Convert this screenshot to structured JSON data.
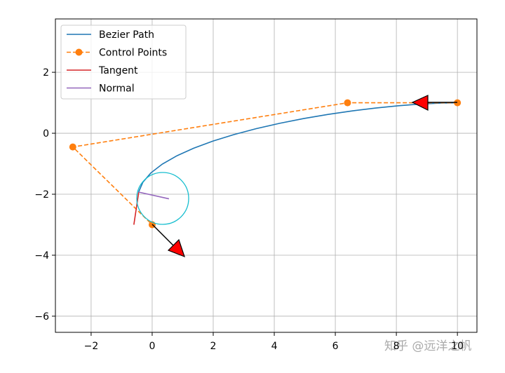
{
  "chart_data": {
    "type": "line",
    "series": [
      {
        "name": "Bezier Path",
        "color": "#1f77b4",
        "style": "solid",
        "marker": false,
        "x": [
          10,
          9.4216,
          8.775,
          8.0729,
          7.328,
          6.5531,
          5.761,
          4.9644,
          4.176,
          3.4086,
          2.675,
          1.9879,
          1.36,
          0.8041,
          0.333,
          -0.0406,
          -0.3036,
          -0.4441
        ],
        "values": [
          1,
          0.9892,
          0.9569,
          0.9033,
          0.8288,
          0.7336,
          0.618,
          0.4821,
          0.3264,
          0.151,
          -0.0438,
          -0.2576,
          -0.4904,
          -0.7418,
          -1.0115,
          -1.2992,
          -1.6048,
          -1.9277
        ]
      },
      {
        "name": "Control Points",
        "color": "#ff7f0e",
        "style": "dashed",
        "marker": true,
        "x": [
          10,
          6.4,
          -2.6,
          0
        ],
        "values": [
          1,
          1,
          -0.45,
          -3
        ]
      },
      {
        "name": "Tangent",
        "color": "#d62728",
        "style": "solid",
        "marker": false,
        "x": [
          -0.6,
          -0.44
        ],
        "values": [
          -3,
          -1.93
        ]
      },
      {
        "name": "Normal",
        "color": "#9467bd",
        "style": "solid",
        "marker": false,
        "x": [
          -0.44,
          0.55
        ],
        "values": [
          -1.93,
          -2.15
        ]
      }
    ],
    "xlim": [
      -3.17,
      10.64
    ],
    "ylim": [
      -6.53,
      3.75
    ],
    "xticks": [
      {
        "value": -2,
        "label": "−2"
      },
      0,
      2,
      4,
      6,
      8,
      10
    ],
    "yticks": [
      {
        "value": -6,
        "label": "−6"
      },
      {
        "value": -4,
        "label": "−4"
      },
      {
        "value": -2,
        "label": "−2"
      },
      0,
      2
    ],
    "grid": true,
    "legend": "upper-left"
  },
  "watermark": "知乎 @远洋之帆"
}
